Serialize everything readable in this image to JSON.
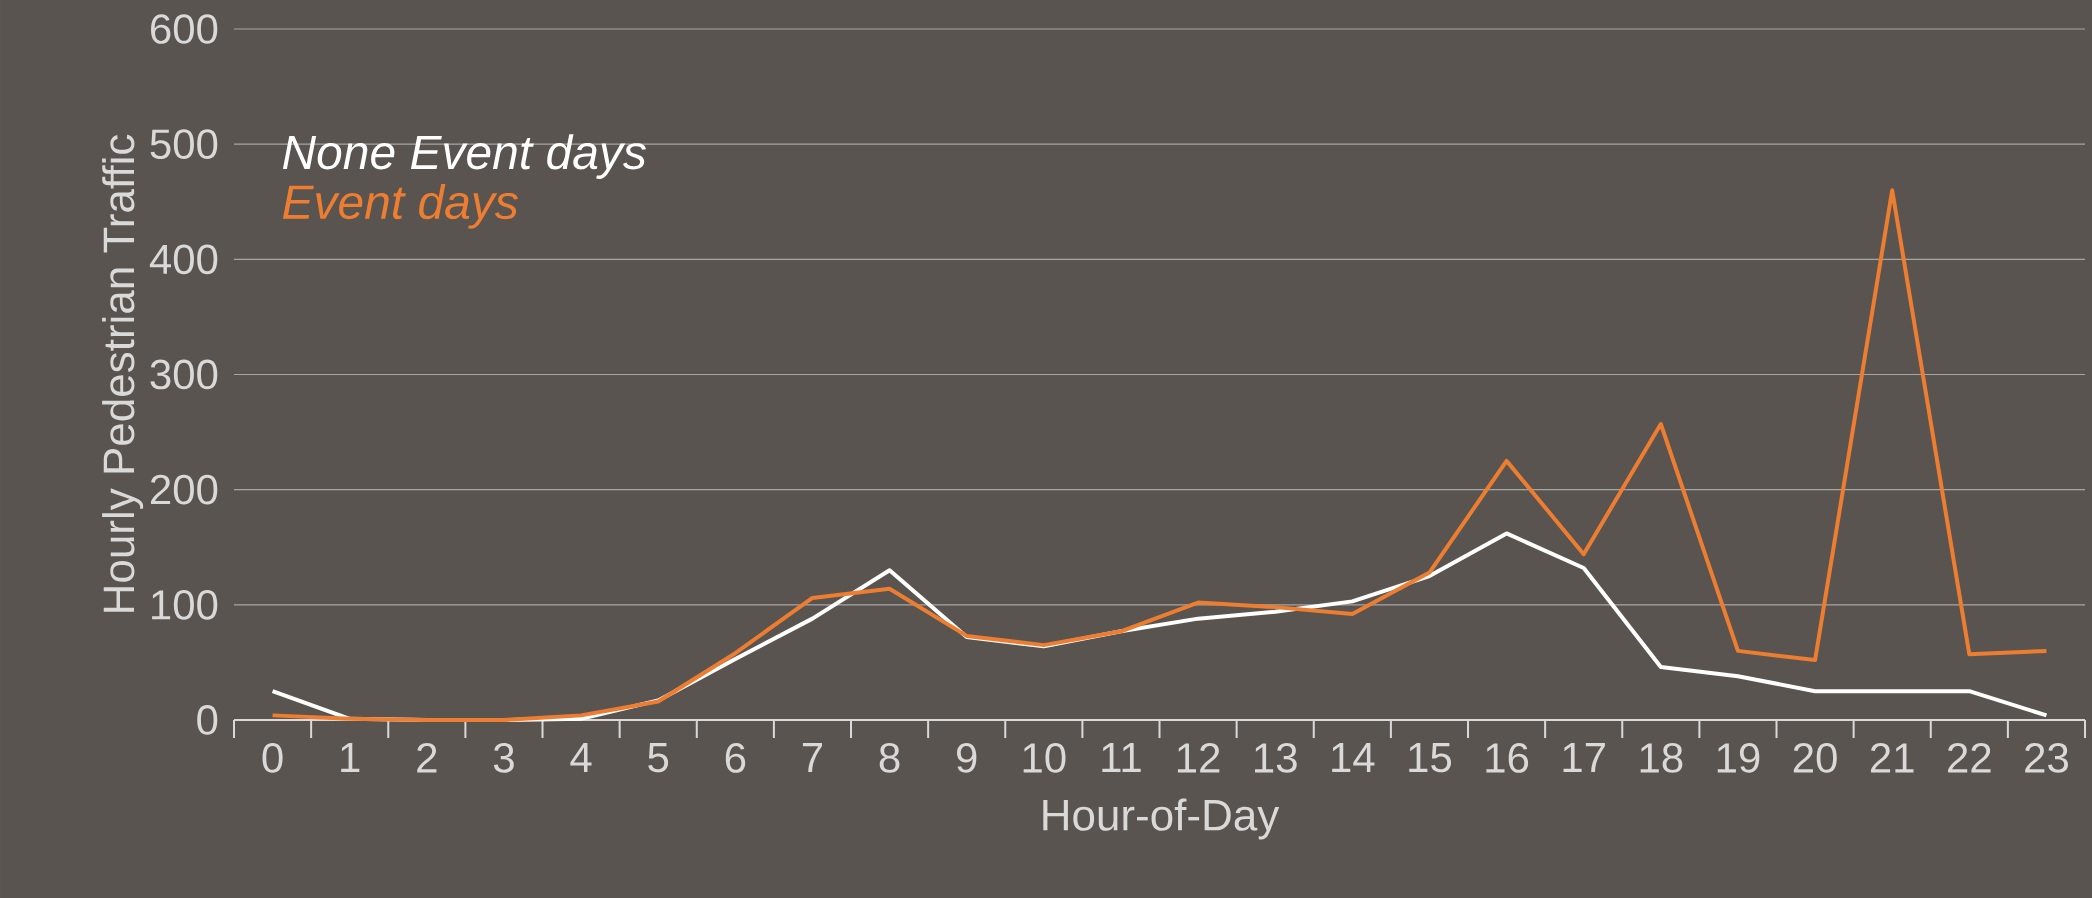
{
  "chart_data": {
    "type": "line",
    "xlabel": "Hour-of-Day",
    "ylabel": "Hourly Pedestrian Traffic",
    "categories": [
      "0",
      "1",
      "2",
      "3",
      "4",
      "5",
      "6",
      "7",
      "8",
      "9",
      "10",
      "11",
      "12",
      "13",
      "14",
      "15",
      "16",
      "17",
      "18",
      "19",
      "20",
      "21",
      "22",
      "23"
    ],
    "series": [
      {
        "name": "None Event days",
        "color": "#ffffff",
        "values": [
          25,
          1,
          0,
          0,
          1,
          17,
          53,
          88,
          130,
          72,
          64,
          77,
          88,
          94,
          103,
          125,
          162,
          132,
          46,
          38,
          25,
          25,
          25,
          4
        ]
      },
      {
        "name": "Event days",
        "color": "#ed7d31",
        "values": [
          4,
          1,
          0,
          0,
          4,
          16,
          58,
          106,
          114,
          73,
          65,
          77,
          102,
          98,
          92,
          128,
          225,
          144,
          257,
          60,
          52,
          460,
          57,
          60
        ]
      }
    ],
    "ylim": [
      0,
      600
    ],
    "yticks": [
      0,
      100,
      200,
      300,
      400,
      500,
      600
    ],
    "grid": "y",
    "legend": "top left",
    "marker": "none",
    "line_style": "solid"
  }
}
